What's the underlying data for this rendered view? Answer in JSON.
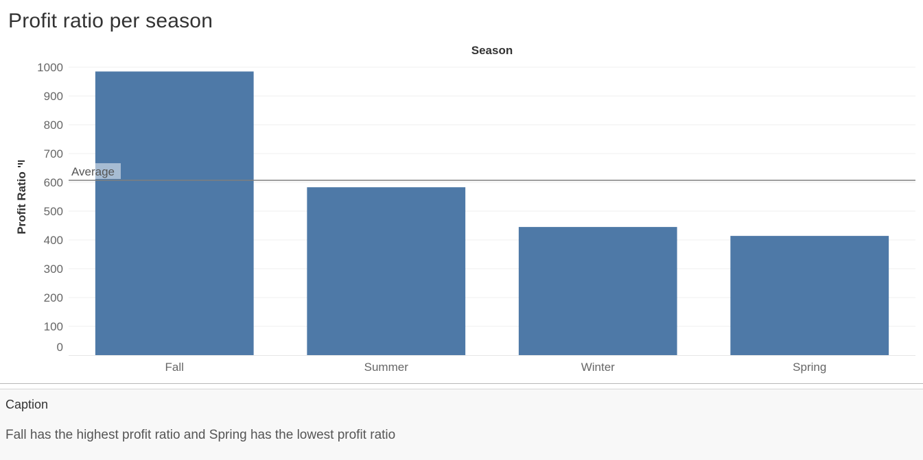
{
  "chart_data": {
    "type": "bar",
    "title": "Profit ratio per season",
    "xlabel": "Season",
    "ylabel": "Profit Ratio",
    "categories": [
      "Fall",
      "Summer",
      "Winter",
      "Spring"
    ],
    "values": [
      985,
      583,
      445,
      414
    ],
    "ylim": [
      0,
      1000
    ],
    "yticks": [
      0,
      100,
      200,
      300,
      400,
      500,
      600,
      700,
      800,
      900,
      1000
    ],
    "bar_color": "#4e79a7",
    "reference_line": {
      "label": "Average",
      "value": 607
    },
    "grid": true,
    "legend": "none"
  },
  "caption": {
    "label": "Caption",
    "text": "Fall has the highest profit ratio and Spring has the lowest profit ratio"
  },
  "sort_icon": "sort-descending-icon"
}
